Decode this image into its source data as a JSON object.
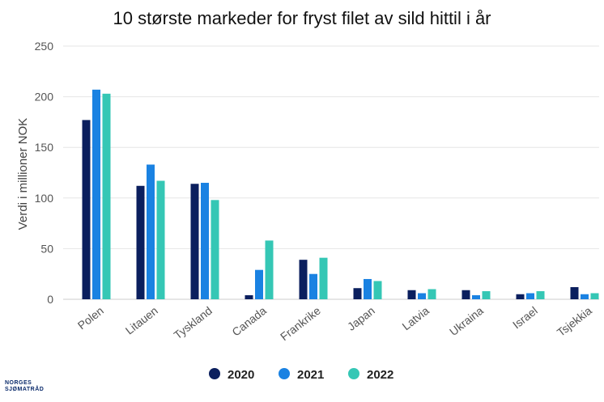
{
  "chart_data": {
    "type": "bar",
    "title": "10 største markeder for fryst filet av sild hittil i år",
    "ylabel": "Verdi i millioner NOK",
    "xlabel": "",
    "ylim": [
      0,
      250
    ],
    "yticks": [
      0,
      50,
      100,
      150,
      200,
      250
    ],
    "grid": true,
    "legend_position": "bottom",
    "categories": [
      "Polen",
      "Litauen",
      "Tyskland",
      "Canada",
      "Frankrike",
      "Japan",
      "Latvia",
      "Ukraina",
      "Israel",
      "Tsjekkia"
    ],
    "series": [
      {
        "name": "2020",
        "color": "#0b1f5e",
        "values": [
          177,
          112,
          114,
          4,
          39,
          11,
          9,
          9,
          5,
          12
        ]
      },
      {
        "name": "2021",
        "color": "#1a82e2",
        "values": [
          207,
          133,
          115,
          29,
          25,
          20,
          6,
          4,
          6,
          5
        ]
      },
      {
        "name": "2022",
        "color": "#35c7b5",
        "values": [
          203,
          117,
          98,
          58,
          41,
          18,
          10,
          8,
          8,
          6
        ]
      }
    ]
  },
  "logo": {
    "line1": "NORGES",
    "line2": "SJØMATRÅD"
  }
}
